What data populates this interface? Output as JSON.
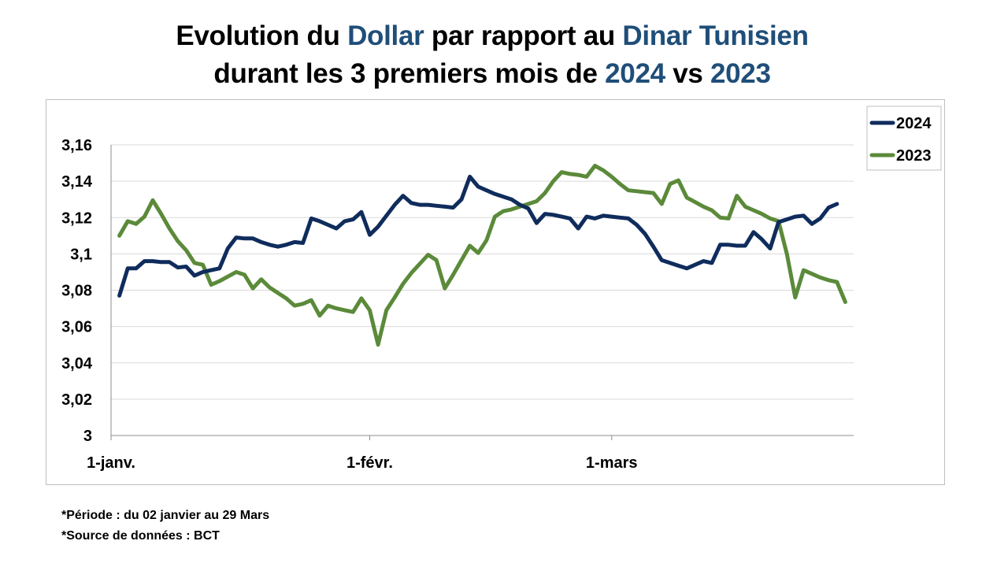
{
  "title": {
    "line1": {
      "a": "Evolution du ",
      "b": "Dollar",
      "c": " par rapport au ",
      "d": "Dinar Tunisien"
    },
    "line2": {
      "a": "durant les 3 premiers mois de ",
      "b": "2024",
      "c": " vs ",
      "d": "2023"
    }
  },
  "notes": {
    "period": "*Période  : du 02 janvier au 29 Mars",
    "source": "*Source de données : BCT"
  },
  "colors": {
    "series_2024": "#0f2c5c",
    "series_2023": "#5b8a3a",
    "highlight": "#1f4e79",
    "grid": "#d9d9d9"
  },
  "chart_data": {
    "type": "line",
    "xlabel": "",
    "ylabel": "",
    "x_tick_labels": [
      {
        "label": "1-janv.",
        "day": 1
      },
      {
        "label": "1-févr.",
        "day": 32
      },
      {
        "label": "1-mars",
        "day": 61
      }
    ],
    "y_tick_labels": [
      "3",
      "3,02",
      "3,04",
      "3,06",
      "3,08",
      "3,1",
      "3,12",
      "3,14",
      "3,16"
    ],
    "ylim": [
      3.0,
      3.16
    ],
    "xlim_days": [
      1,
      90
    ],
    "grid": true,
    "legend_position": "top-right",
    "series": [
      {
        "name": "2024",
        "points": [
          [
            2,
            3.077
          ],
          [
            3,
            3.092
          ],
          [
            4,
            3.092
          ],
          [
            5,
            3.096
          ],
          [
            6,
            3.096
          ],
          [
            7,
            3.0955
          ],
          [
            8,
            3.0955
          ],
          [
            9,
            3.0925
          ],
          [
            10,
            3.093
          ],
          [
            11,
            3.088
          ],
          [
            12,
            3.09
          ],
          [
            13,
            3.091
          ],
          [
            14,
            3.092
          ],
          [
            15,
            3.103
          ],
          [
            16,
            3.109
          ],
          [
            17,
            3.1085
          ],
          [
            18,
            3.1085
          ],
          [
            19,
            3.1065
          ],
          [
            20,
            3.105
          ],
          [
            21,
            3.104
          ],
          [
            22,
            3.105
          ],
          [
            23,
            3.1065
          ],
          [
            24,
            3.106
          ],
          [
            25,
            3.1195
          ],
          [
            26,
            3.118
          ],
          [
            27,
            3.116
          ],
          [
            28,
            3.114
          ],
          [
            29,
            3.118
          ],
          [
            30,
            3.119
          ],
          [
            31,
            3.123
          ],
          [
            32,
            3.1105
          ],
          [
            33,
            3.115
          ],
          [
            34,
            3.121
          ],
          [
            35,
            3.127
          ],
          [
            36,
            3.132
          ],
          [
            37,
            3.128
          ],
          [
            38,
            3.127
          ],
          [
            39,
            3.127
          ],
          [
            40,
            3.1265
          ],
          [
            41,
            3.126
          ],
          [
            42,
            3.1255
          ],
          [
            43,
            3.13
          ],
          [
            44,
            3.1425
          ],
          [
            45,
            3.137
          ],
          [
            46,
            3.135
          ],
          [
            47,
            3.133
          ],
          [
            48,
            3.1315
          ],
          [
            49,
            3.13
          ],
          [
            50,
            3.127
          ],
          [
            51,
            3.125
          ],
          [
            52,
            3.117
          ],
          [
            53,
            3.122
          ],
          [
            54,
            3.1215
          ],
          [
            55,
            3.1205
          ],
          [
            56,
            3.1195
          ],
          [
            57,
            3.114
          ],
          [
            58,
            3.1205
          ],
          [
            59,
            3.1195
          ],
          [
            60,
            3.121
          ],
          [
            61,
            3.1205
          ],
          [
            62,
            3.12
          ],
          [
            63,
            3.1195
          ],
          [
            64,
            3.116
          ],
          [
            65,
            3.111
          ],
          [
            66,
            3.104
          ],
          [
            67,
            3.0965
          ],
          [
            68,
            3.095
          ],
          [
            69,
            3.0935
          ],
          [
            70,
            3.092
          ],
          [
            71,
            3.094
          ],
          [
            72,
            3.096
          ],
          [
            73,
            3.095
          ],
          [
            74,
            3.105
          ],
          [
            75,
            3.105
          ],
          [
            76,
            3.1045
          ],
          [
            77,
            3.1045
          ],
          [
            78,
            3.112
          ],
          [
            79,
            3.108
          ],
          [
            80,
            3.103
          ],
          [
            81,
            3.1175
          ],
          [
            82,
            3.119
          ],
          [
            83,
            3.1205
          ],
          [
            84,
            3.121
          ],
          [
            85,
            3.1165
          ],
          [
            86,
            3.1195
          ],
          [
            87,
            3.1255
          ],
          [
            88,
            3.1275
          ]
        ]
      },
      {
        "name": "2023",
        "points": [
          [
            2,
            3.11
          ],
          [
            3,
            3.118
          ],
          [
            4,
            3.1165
          ],
          [
            5,
            3.1205
          ],
          [
            6,
            3.1295
          ],
          [
            7,
            3.122
          ],
          [
            8,
            3.114
          ],
          [
            9,
            3.107
          ],
          [
            10,
            3.102
          ],
          [
            11,
            3.095
          ],
          [
            12,
            3.094
          ],
          [
            13,
            3.083
          ],
          [
            14,
            3.085
          ],
          [
            15,
            3.0875
          ],
          [
            16,
            3.09
          ],
          [
            17,
            3.0885
          ],
          [
            18,
            3.081
          ],
          [
            19,
            3.086
          ],
          [
            20,
            3.0815
          ],
          [
            21,
            3.0785
          ],
          [
            22,
            3.0755
          ],
          [
            23,
            3.0715
          ],
          [
            24,
            3.0725
          ],
          [
            25,
            3.0745
          ],
          [
            26,
            3.066
          ],
          [
            27,
            3.0715
          ],
          [
            28,
            3.07
          ],
          [
            29,
            3.069
          ],
          [
            30,
            3.068
          ],
          [
            31,
            3.0755
          ],
          [
            32,
            3.069
          ],
          [
            33,
            3.05
          ],
          [
            34,
            3.069
          ],
          [
            35,
            3.076
          ],
          [
            36,
            3.0835
          ],
          [
            37,
            3.0895
          ],
          [
            38,
            3.0945
          ],
          [
            39,
            3.0995
          ],
          [
            40,
            3.0965
          ],
          [
            41,
            3.081
          ],
          [
            42,
            3.0885
          ],
          [
            43,
            3.0965
          ],
          [
            44,
            3.1045
          ],
          [
            45,
            3.1005
          ],
          [
            46,
            3.1075
          ],
          [
            47,
            3.1205
          ],
          [
            48,
            3.1235
          ],
          [
            49,
            3.1245
          ],
          [
            50,
            3.126
          ],
          [
            51,
            3.1275
          ],
          [
            52,
            3.129
          ],
          [
            53,
            3.1335
          ],
          [
            54,
            3.14
          ],
          [
            55,
            3.145
          ],
          [
            56,
            3.144
          ],
          [
            57,
            3.1435
          ],
          [
            58,
            3.1425
          ],
          [
            59,
            3.1485
          ],
          [
            60,
            3.146
          ],
          [
            61,
            3.1425
          ],
          [
            62,
            3.1385
          ],
          [
            63,
            3.135
          ],
          [
            64,
            3.1345
          ],
          [
            65,
            3.134
          ],
          [
            66,
            3.1335
          ],
          [
            67,
            3.1275
          ],
          [
            68,
            3.1385
          ],
          [
            69,
            3.1405
          ],
          [
            70,
            3.131
          ],
          [
            71,
            3.1285
          ],
          [
            72,
            3.126
          ],
          [
            73,
            3.124
          ],
          [
            74,
            3.12
          ],
          [
            75,
            3.1195
          ],
          [
            76,
            3.132
          ],
          [
            77,
            3.126
          ],
          [
            78,
            3.124
          ],
          [
            79,
            3.122
          ],
          [
            80,
            3.1195
          ],
          [
            81,
            3.118
          ],
          [
            82,
            3.1
          ],
          [
            83,
            3.076
          ],
          [
            84,
            3.091
          ],
          [
            85,
            3.089
          ],
          [
            86,
            3.087
          ],
          [
            87,
            3.0855
          ],
          [
            88,
            3.0845
          ],
          [
            89,
            3.0735
          ]
        ]
      }
    ]
  }
}
